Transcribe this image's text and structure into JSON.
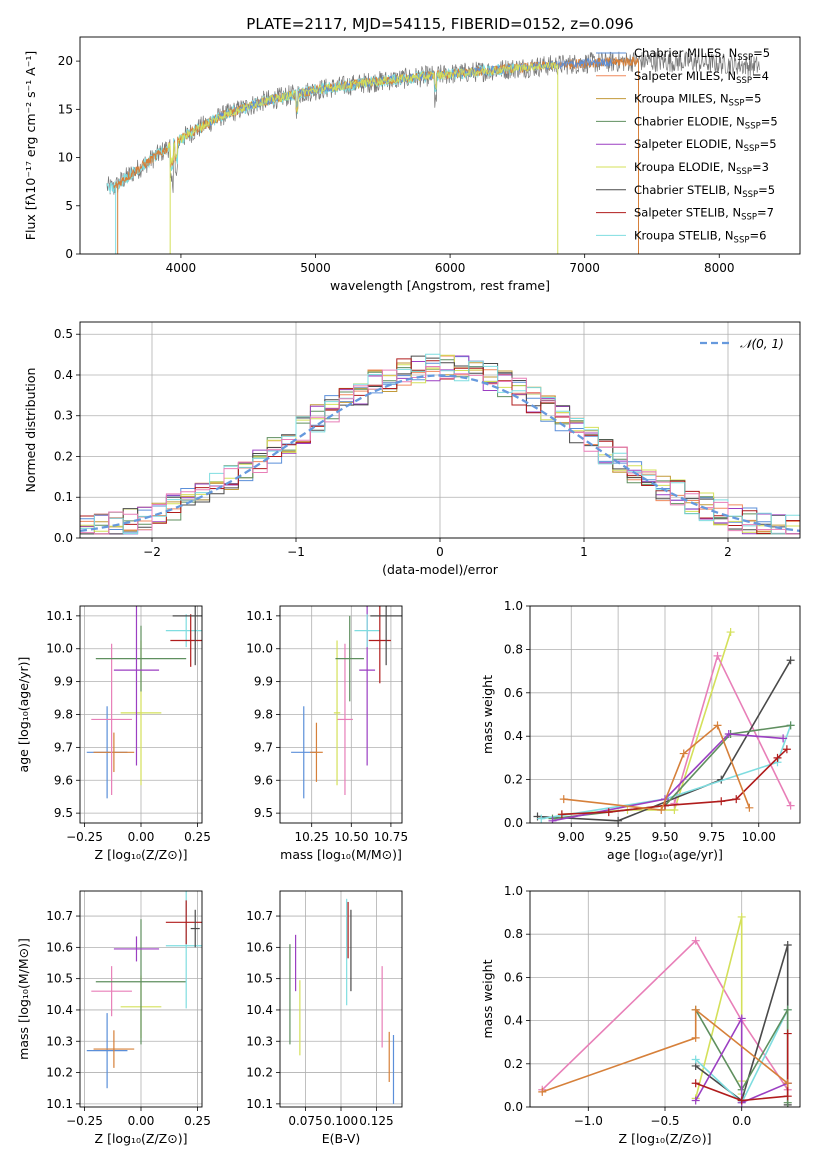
{
  "title": "PLATE=2117, MJD=54115, FIBERID=0152, z=0.096",
  "colors": {
    "Chabrier MILES": "#5b8fd9",
    "Salpeter MILES": "#f08a5d",
    "Kroupa MILES": "#c29a3a",
    "Chabrier ELODIE": "#5f8f5f",
    "Salpeter ELODIE": "#9b3fc2",
    "Kroupa ELODIE": "#d4e05a",
    "Chabrier STELIB": "#4a4a4a",
    "Salpeter STELIB": "#b01c1c",
    "Kroupa STELIB": "#7fdde0",
    "extra_pink": "#e87fb8",
    "extra_orange": "#d6803a",
    "grid": "#b0b0b0",
    "normal": "#6699dd",
    "data_line": "#777777"
  },
  "chart_data": [
    {
      "id": "spectrum",
      "type": "line",
      "xlabel": "wavelength [Angstrom, rest frame]",
      "ylabel": "Flux [fλ10⁻¹⁷ erg cm⁻² s⁻¹ A⁻¹]",
      "xlim": [
        3250,
        8600
      ],
      "ylim": [
        0,
        22.5
      ],
      "xticks": [
        4000,
        5000,
        6000,
        7000,
        8000
      ],
      "yticks": [
        0,
        5,
        10,
        15,
        20
      ],
      "grid": false,
      "legend_position": "top-right",
      "envelope": {
        "x": [
          3450,
          3500,
          3550,
          3650,
          3800,
          3950,
          4100,
          4300,
          4600,
          5000,
          5400,
          5800,
          6200,
          6600,
          7000,
          7400,
          7800,
          8300
        ],
        "y": [
          7.0,
          6.8,
          7.5,
          8.5,
          10.0,
          11.5,
          12.8,
          14.3,
          15.8,
          17.0,
          17.8,
          18.4,
          18.9,
          19.4,
          19.8,
          20.0,
          19.9,
          19.5
        ]
      },
      "legend": [
        {
          "label": "Chabrier MILES, N",
          "sub": "SSP",
          "value": "=5"
        },
        {
          "label": "Salpeter MILES, N",
          "sub": "SSP",
          "value": "=4"
        },
        {
          "label": "Kroupa MILES, N",
          "sub": "SSP",
          "value": "=5"
        },
        {
          "label": "Chabrier ELODIE, N",
          "sub": "SSP",
          "value": "=5"
        },
        {
          "label": "Salpeter ELODIE, N",
          "sub": "SSP",
          "value": "=5"
        },
        {
          "label": "Kroupa ELODIE, N",
          "sub": "SSP",
          "value": "=3"
        },
        {
          "label": "Chabrier STELIB, N",
          "sub": "SSP",
          "value": "=5"
        },
        {
          "label": "Salpeter STELIB, N",
          "sub": "SSP",
          "value": "=7"
        },
        {
          "label": "Kroupa STELIB, N",
          "sub": "SSP",
          "value": "=6"
        }
      ]
    },
    {
      "id": "residuals",
      "type": "line",
      "xlabel": "(data-model)/error",
      "ylabel": "Normed distribution",
      "xlim": [
        -2.5,
        2.5
      ],
      "ylim": [
        0,
        0.53
      ],
      "xticks": [
        -2,
        -1,
        0,
        1,
        2
      ],
      "yticks": [
        0.0,
        0.1,
        0.2,
        0.3,
        0.4,
        0.5
      ],
      "xtick_labels": [
        "−2",
        "−1",
        "0",
        "1",
        "2"
      ],
      "ytick_labels": [
        "0.0",
        "0.1",
        "0.2",
        "0.3",
        "0.4",
        "0.5"
      ],
      "grid": true,
      "legend": [
        {
          "label": "𝒩(0, 1)",
          "style": "dashed"
        }
      ],
      "legend_position": "top-right",
      "bin_width": 0.1
    },
    {
      "id": "Z-age",
      "type": "scatter",
      "xlabel": "Z [log₁₀(Z/Z⊙)]",
      "ylabel": "age  [log₁₀(age/yr)]",
      "xlim": [
        -0.27,
        0.27
      ],
      "ylim": [
        9.47,
        10.13
      ],
      "xticks": [
        -0.25,
        0.0,
        0.25
      ],
      "xtick_labels": [
        "−0.25",
        "0.00",
        "0.25"
      ],
      "yticks": [
        9.5,
        9.6,
        9.7,
        9.8,
        9.9,
        10.0,
        10.1
      ],
      "ytick_labels": [
        "9.5",
        "9.6",
        "9.7",
        "9.8",
        "9.9",
        "10.0",
        "10.1"
      ],
      "grid": true,
      "points": [
        {
          "x": -0.15,
          "xerr": 0.09,
          "y": 9.685,
          "yerr": 0.14,
          "color": "#5b8fd9"
        },
        {
          "x": -0.12,
          "xerr": 0.09,
          "y": 9.685,
          "yerr": 0.06,
          "color": "#d6803a"
        },
        {
          "x": -0.13,
          "xerr": 0.09,
          "y": 9.785,
          "yerr": 0.23,
          "color": "#e87fb8"
        },
        {
          "x": 0.0,
          "xerr": 0.09,
          "y": 9.805,
          "yerr": 0.22,
          "color": "#d4e05a"
        },
        {
          "x": 0.0,
          "xerr": 0.2,
          "y": 9.97,
          "yerr": 0.1,
          "color": "#5f8f5f"
        },
        {
          "x": -0.02,
          "xerr": 0.1,
          "y": 9.935,
          "yerr": 0.29,
          "color": "#9b3fc2"
        },
        {
          "x": 0.2,
          "xerr": 0.09,
          "y": 10.055,
          "yerr": 0.05,
          "color": "#7fdde0"
        },
        {
          "x": 0.22,
          "xerr": 0.09,
          "y": 10.025,
          "yerr": 0.08,
          "color": "#b01c1c"
        },
        {
          "x": 0.24,
          "xerr": 0.1,
          "y": 10.1,
          "yerr": 0.15,
          "color": "#4a4a4a"
        }
      ]
    },
    {
      "id": "mass-age",
      "type": "scatter",
      "xlabel": "mass [log₁₀(M/M⊙)]",
      "ylabel": "",
      "xlim": [
        10.05,
        10.82
      ],
      "ylim": [
        9.47,
        10.13
      ],
      "xticks": [
        10.25,
        10.5,
        10.75
      ],
      "xtick_labels": [
        "10.25",
        "10.50",
        "10.75"
      ],
      "yticks": [
        9.5,
        9.6,
        9.7,
        9.8,
        9.9,
        10.0,
        10.1
      ],
      "ytick_labels": [
        "9.5",
        "9.6",
        "9.7",
        "9.8",
        "9.9",
        "10.0",
        "10.1"
      ],
      "grid": true,
      "points": [
        {
          "x": 10.2,
          "xerr": 0.08,
          "y": 9.685,
          "yerr": 0.14,
          "color": "#5b8fd9"
        },
        {
          "x": 10.28,
          "xerr": 0.04,
          "y": 9.685,
          "yerr": 0.09,
          "color": "#d6803a"
        },
        {
          "x": 10.46,
          "xerr": 0.05,
          "y": 9.785,
          "yerr": 0.23,
          "color": "#e87fb8"
        },
        {
          "x": 10.41,
          "xerr": 0.02,
          "y": 9.805,
          "yerr": 0.22,
          "color": "#d4e05a"
        },
        {
          "x": 10.49,
          "xerr": 0.09,
          "y": 9.97,
          "yerr": 0.13,
          "color": "#5f8f5f"
        },
        {
          "x": 10.6,
          "xerr": 0.05,
          "y": 9.935,
          "yerr": 0.29,
          "color": "#9b3fc2"
        },
        {
          "x": 10.6,
          "xerr": 0.08,
          "y": 10.055,
          "yerr": 0.05,
          "color": "#7fdde0"
        },
        {
          "x": 10.68,
          "xerr": 0.07,
          "y": 10.025,
          "yerr": 0.13,
          "color": "#b01c1c"
        },
        {
          "x": 10.72,
          "xerr": 0.1,
          "y": 10.1,
          "yerr": 0.15,
          "color": "#4a4a4a"
        }
      ]
    },
    {
      "id": "age-weight",
      "type": "line",
      "xlabel": "age  [log₁₀(age/yr)]",
      "ylabel": "mass weight",
      "xlim": [
        8.78,
        10.22
      ],
      "ylim": [
        0,
        1
      ],
      "xticks": [
        9.0,
        9.25,
        9.5,
        9.75,
        10.0
      ],
      "xtick_labels": [
        "9.00",
        "9.25",
        "9.50",
        "9.75",
        "10.00"
      ],
      "yticks": [
        0.0,
        0.2,
        0.4,
        0.6,
        0.8,
        1.0
      ],
      "ytick_labels": [
        "0.0",
        "0.2",
        "0.4",
        "0.6",
        "0.8",
        "1.0"
      ],
      "grid": true,
      "series": [
        {
          "color": "#d4e05a",
          "x": [
            8.95,
            9.3,
            9.55,
            9.85
          ],
          "y": [
            0.04,
            0.06,
            0.06,
            0.88
          ]
        },
        {
          "color": "#e87fb8",
          "x": [
            9.55,
            9.78,
            10.17
          ],
          "y": [
            0.09,
            0.77,
            0.08
          ]
        },
        {
          "color": "#4a4a4a",
          "x": [
            8.82,
            9.25,
            9.8,
            10.17
          ],
          "y": [
            0.03,
            0.01,
            0.2,
            0.75
          ]
        },
        {
          "color": "#7fdde0",
          "x": [
            8.84,
            9.5,
            10.1,
            10.17
          ],
          "y": [
            0.02,
            0.11,
            0.28,
            0.45
          ]
        },
        {
          "color": "#5f8f5f",
          "x": [
            8.9,
            9.5,
            9.85,
            10.17
          ],
          "y": [
            0.02,
            0.08,
            0.41,
            0.45
          ]
        },
        {
          "color": "#9b3fc2",
          "x": [
            8.9,
            9.5,
            9.84,
            10.13
          ],
          "y": [
            0.01,
            0.11,
            0.41,
            0.39
          ]
        },
        {
          "color": "#b01c1c",
          "x": [
            8.95,
            9.2,
            9.5,
            9.8,
            9.88,
            10.1,
            10.15
          ],
          "y": [
            0.04,
            0.05,
            0.08,
            0.1,
            0.11,
            0.3,
            0.34
          ]
        },
        {
          "color": "#d6803a",
          "x": [
            8.96,
            9.48,
            9.6,
            9.78,
            9.95
          ],
          "y": [
            0.11,
            0.06,
            0.32,
            0.45,
            0.07
          ]
        }
      ]
    },
    {
      "id": "Z-mass",
      "type": "scatter",
      "xlabel": "Z [log₁₀(Z/Z⊙)]",
      "ylabel": "mass [log₁₀(M/M⊙)]",
      "xlim": [
        -0.27,
        0.27
      ],
      "ylim": [
        10.09,
        10.78
      ],
      "xticks": [
        -0.25,
        0.0,
        0.25
      ],
      "xtick_labels": [
        "−0.25",
        "0.00",
        "0.25"
      ],
      "yticks": [
        10.1,
        10.2,
        10.3,
        10.4,
        10.5,
        10.6,
        10.7
      ],
      "ytick_labels": [
        "10.1",
        "10.2",
        "10.3",
        "10.4",
        "10.5",
        "10.6",
        "10.7"
      ],
      "grid": true,
      "points": [
        {
          "x": -0.15,
          "xerr": 0.09,
          "y": 10.27,
          "yerr": 0.12,
          "color": "#5b8fd9"
        },
        {
          "x": -0.12,
          "xerr": 0.09,
          "y": 10.275,
          "yerr": 0.06,
          "color": "#d6803a"
        },
        {
          "x": -0.13,
          "xerr": 0.09,
          "y": 10.46,
          "yerr": 0.08,
          "color": "#e87fb8"
        },
        {
          "x": 0.0,
          "xerr": 0.09,
          "y": 10.41,
          "yerr": 0.1,
          "color": "#d4e05a"
        },
        {
          "x": 0.0,
          "xerr": 0.2,
          "y": 10.49,
          "yerr": 0.2,
          "color": "#5f8f5f"
        },
        {
          "x": -0.02,
          "xerr": 0.1,
          "y": 10.595,
          "yerr": 0.04,
          "color": "#9b3fc2"
        },
        {
          "x": 0.2,
          "xerr": 0.09,
          "y": 10.605,
          "yerr": 0.2,
          "color": "#7fdde0"
        },
        {
          "x": 0.2,
          "xerr": 0.09,
          "y": 10.68,
          "yerr": 0.07,
          "color": "#b01c1c"
        },
        {
          "x": 0.24,
          "xerr": 0.02,
          "y": 10.66,
          "yerr": 0.06,
          "color": "#4a4a4a"
        }
      ]
    },
    {
      "id": "EBV-mass",
      "type": "scatter",
      "xlabel": "E(B-V)",
      "ylabel": "",
      "xlim": [
        0.057,
        0.143
      ],
      "ylim": [
        10.09,
        10.78
      ],
      "xticks": [
        0.075,
        0.1,
        0.125
      ],
      "xtick_labels": [
        "0.075",
        "0.100",
        "0.125"
      ],
      "yticks": [
        10.1,
        10.2,
        10.3,
        10.4,
        10.5,
        10.6,
        10.7
      ],
      "ytick_labels": [
        "10.1",
        "10.2",
        "10.3",
        "10.4",
        "10.5",
        "10.6",
        "10.7"
      ],
      "grid": true,
      "points": [
        {
          "x": 0.064,
          "y": 10.45,
          "yerr": 0.16,
          "color": "#5f8f5f"
        },
        {
          "x": 0.068,
          "y": 10.55,
          "yerr": 0.09,
          "color": "#9b3fc2"
        },
        {
          "x": 0.071,
          "y": 10.375,
          "yerr": 0.12,
          "color": "#d4e05a"
        },
        {
          "x": 0.104,
          "y": 10.585,
          "yerr": 0.17,
          "color": "#7fdde0"
        },
        {
          "x": 0.105,
          "y": 10.655,
          "yerr": 0.09,
          "color": "#b01c1c"
        },
        {
          "x": 0.107,
          "y": 10.59,
          "yerr": 0.13,
          "color": "#4a4a4a"
        },
        {
          "x": 0.129,
          "y": 10.41,
          "yerr": 0.13,
          "color": "#e87fb8"
        },
        {
          "x": 0.134,
          "y": 10.25,
          "yerr": 0.08,
          "color": "#d6803a"
        },
        {
          "x": 0.137,
          "y": 10.21,
          "yerr": 0.11,
          "color": "#5b8fd9"
        }
      ]
    },
    {
      "id": "Z-weight",
      "type": "line",
      "xlabel": "Z [log₁₀(Z/Z⊙)]",
      "ylabel": "mass weight",
      "xlim": [
        -1.38,
        0.38
      ],
      "ylim": [
        0,
        1
      ],
      "xticks": [
        -1.0,
        -0.5,
        0.0
      ],
      "xtick_labels": [
        "−1.0",
        "−0.5",
        "0.0"
      ],
      "yticks": [
        0.0,
        0.2,
        0.4,
        0.6,
        0.8,
        1.0
      ],
      "ytick_labels": [
        "0.0",
        "0.2",
        "0.4",
        "0.6",
        "0.8",
        "1.0"
      ],
      "grid": true,
      "series": [
        {
          "color": "#e87fb8",
          "x": [
            -1.3,
            -0.3,
            0.0,
            0.3
          ],
          "y": [
            0.08,
            0.77,
            0.4,
            0.08
          ]
        },
        {
          "color": "#d4e05a",
          "x": [
            -0.3,
            0.0,
            0.0,
            0.0
          ],
          "y": [
            0.04,
            0.88,
            0.12,
            0.06
          ]
        },
        {
          "color": "#4a4a4a",
          "x": [
            -0.3,
            0.0,
            0.3,
            0.3
          ],
          "y": [
            0.19,
            0.03,
            0.75,
            0.01
          ]
        },
        {
          "color": "#7fdde0",
          "x": [
            -0.3,
            0.0,
            0.3,
            0.3
          ],
          "y": [
            0.22,
            0.02,
            0.45,
            0.11
          ]
        },
        {
          "color": "#5f8f5f",
          "x": [
            -0.3,
            0.0,
            0.3,
            0.3
          ],
          "y": [
            0.45,
            0.08,
            0.45,
            0.02
          ]
        },
        {
          "color": "#9b3fc2",
          "x": [
            -0.3,
            0.0,
            0.0,
            0.3
          ],
          "y": [
            0.03,
            0.41,
            0.02,
            0.11
          ]
        },
        {
          "color": "#b01c1c",
          "x": [
            -0.3,
            0.0,
            0.3,
            0.3
          ],
          "y": [
            0.11,
            0.03,
            0.05,
            0.34
          ]
        },
        {
          "color": "#d6803a",
          "x": [
            -1.3,
            -0.3,
            -0.3,
            0.3
          ],
          "y": [
            0.07,
            0.32,
            0.45,
            0.11
          ]
        }
      ]
    }
  ]
}
